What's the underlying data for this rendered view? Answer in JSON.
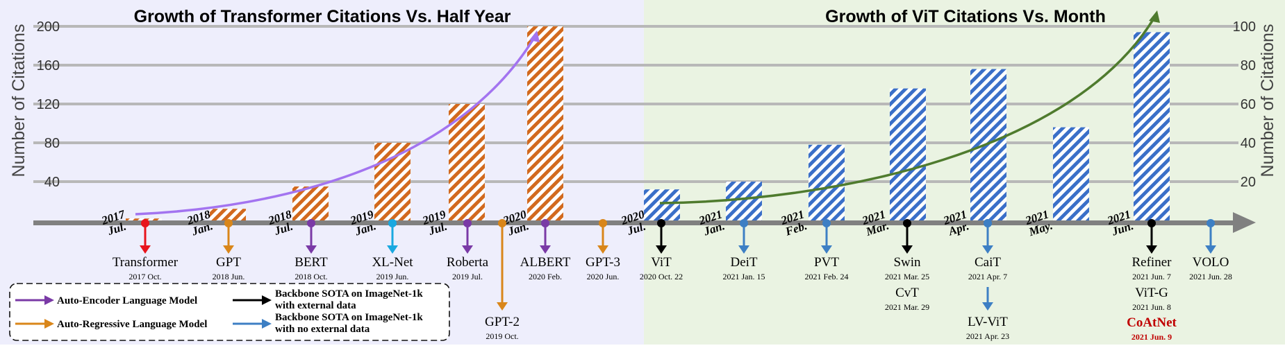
{
  "colors": {
    "left_panel_bg": "#eeeefc",
    "right_panel_bg": "#eaf3e2",
    "grid": "#b8b8b8",
    "axis": "#808080",
    "left_bar": "#d2691e",
    "right_bar": "#3a6fc8",
    "left_trend": "#a374f0",
    "right_trend": "#4f7b2e",
    "red": "#e8141c",
    "orange": "#d9861a",
    "purple": "#7a3aa6",
    "cyan": "#1aa8e0",
    "black": "#000000",
    "blue": "#3d7fc4",
    "coatnet_red": "#c00000"
  },
  "chart_data": [
    {
      "type": "bar",
      "title": "Growth of Transformer Citations Vs. Half Year",
      "ylabel": "Number of Citations",
      "y_ticks": [
        40,
        80,
        120,
        160,
        200
      ],
      "ylim": [
        0,
        200
      ],
      "grid": true,
      "categories": [
        "2017 Jul.",
        "2018 Jan.",
        "2018 Jul.",
        "2019 Jan.",
        "2019 Jul.",
        "2020 Jan."
      ],
      "values": [
        2,
        12,
        35,
        80,
        120,
        200
      ],
      "trend_arrow": "exponential"
    },
    {
      "type": "bar",
      "title": "Growth of ViT Citations Vs. Month",
      "ylabel": "Number of Citations",
      "y_ticks": [
        20,
        40,
        60,
        80,
        100
      ],
      "ylim": [
        0,
        100
      ],
      "grid": true,
      "categories": [
        "2020 Jul.",
        "2021 Jan.",
        "2021 Feb.",
        "2021 Mar.",
        "2021 Apr.",
        "2021 May.",
        "2021 Jun."
      ],
      "values": [
        16,
        20,
        39,
        68,
        78,
        48,
        97
      ],
      "trend_arrow": "exponential"
    }
  ],
  "timeline": {
    "date_labels": [
      {
        "year": "2017",
        "month": "Jul."
      },
      {
        "year": "2018",
        "month": "Jan."
      },
      {
        "year": "2018",
        "month": "Jul."
      },
      {
        "year": "2019",
        "month": "Jan."
      },
      {
        "year": "2019",
        "month": "Jul."
      },
      {
        "year": "2020",
        "month": "Jan."
      },
      {
        "year": "2020",
        "month": "Jul."
      },
      {
        "year": "2021",
        "month": "Jan."
      },
      {
        "year": "2021",
        "month": "Feb."
      },
      {
        "year": "2021",
        "month": "Mar."
      },
      {
        "year": "2021",
        "month": "Apr."
      },
      {
        "year": "2021",
        "month": "May."
      },
      {
        "year": "2021",
        "month": "Jun."
      }
    ],
    "models": [
      {
        "name": "Transformer",
        "date": "2017 Oct.",
        "color": "red"
      },
      {
        "name": "GPT",
        "date": "2018 Jun.",
        "color": "orange"
      },
      {
        "name": "BERT",
        "date": "2018 Oct.",
        "color": "purple"
      },
      {
        "name": "XL-Net",
        "date": "2019 Jun.",
        "color": "cyan"
      },
      {
        "name": "Roberta",
        "date": "2019 Jul.",
        "color": "purple"
      },
      {
        "name": "GPT-2",
        "date": "2019 Oct.",
        "color": "orange"
      },
      {
        "name": "ALBERT",
        "date": "2020 Feb.",
        "color": "purple"
      },
      {
        "name": "GPT-3",
        "date": "2020 Jun.",
        "color": "orange"
      },
      {
        "name": "ViT",
        "date": "2020 Oct. 22",
        "color": "black"
      },
      {
        "name": "DeiT",
        "date": "2021 Jan. 15",
        "color": "blue"
      },
      {
        "name": "PVT",
        "date": "2021 Feb. 24",
        "color": "blue"
      },
      {
        "name": "Swin",
        "date": "2021 Mar. 25",
        "color": "black"
      },
      {
        "name": "CvT",
        "date": "2021 Mar. 29",
        "color": "black"
      },
      {
        "name": "CaiT",
        "date": "2021 Apr. 7",
        "color": "blue"
      },
      {
        "name": "LV-ViT",
        "date": "2021 Apr. 23",
        "color": "blue"
      },
      {
        "name": "Refiner",
        "date": "2021 Jun. 7",
        "color": "black"
      },
      {
        "name": "ViT-G",
        "date": "2021 Jun. 8",
        "color": "black"
      },
      {
        "name": "CoAtNet",
        "date": "2021 Jun. 9",
        "color": "coatnet_red"
      },
      {
        "name": "VOLO",
        "date": "2021 Jun. 28",
        "color": "blue"
      }
    ]
  },
  "legend": [
    {
      "label": "Auto-Encoder Language Model",
      "color": "purple"
    },
    {
      "label": "Auto-Regressive Language Model",
      "color": "orange"
    },
    {
      "label": "Backbone SOTA on ImageNet-1k with external data",
      "color": "black"
    },
    {
      "label": "Backbone SOTA on ImageNet-1k with no external data",
      "color": "blue"
    }
  ]
}
